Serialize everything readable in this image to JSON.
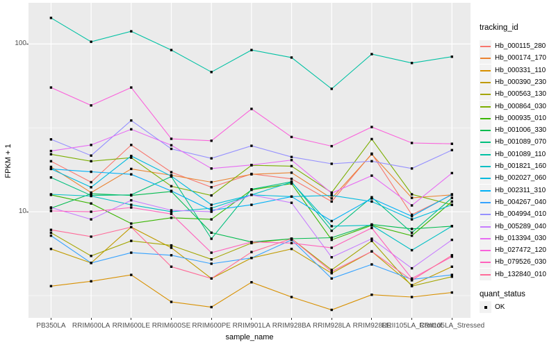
{
  "figure": {
    "y_axis": {
      "title": "FPKM + 1",
      "ticks": [
        {
          "label": "100",
          "value": 100
        },
        {
          "label": "10",
          "value": 10
        }
      ]
    },
    "x_axis": {
      "title": "sample_name"
    },
    "legend": {
      "tracking_title": "tracking_id",
      "quant_title": "quant_status",
      "quant_items": [
        {
          "label": "OK",
          "marker": "filled-square",
          "color": "#000000"
        }
      ]
    },
    "colors": {
      "panel_bg": "#EBEBEB",
      "grid": "#FFFFFF",
      "tick_text": "#4D4D4D",
      "axis_title_text": "#000000",
      "legend_key_bg": "#F2F2F2",
      "marker": "#000000"
    }
  },
  "chart_data": {
    "type": "line",
    "title": "",
    "xlabel": "sample_name",
    "ylabel": "FPKM + 1",
    "y_scale": "log10",
    "ylim": [
      2.33,
      176
    ],
    "y_major_ticks": [
      10,
      100
    ],
    "y_minor_ticks": [
      3.162,
      31.62
    ],
    "grid": "on",
    "legend_position": "right",
    "marker": "filled-black-square",
    "categories": [
      "PB350LA",
      "RRIM600LA",
      "RRIM600LE",
      "RRIM600SE",
      "RRIM600PE",
      "RRIM901LA",
      "RRIM928BA",
      "RRIM928LA",
      "RRIM928LE",
      "RRII105LA_Control",
      "RRII105LA_Stressed"
    ],
    "series": [
      {
        "name": "Hb_000115_280",
        "color": "#F8766D",
        "values": [
          20,
          15,
          25,
          17.2,
          14,
          16.8,
          15.7,
          11.5,
          22.2,
          9.6,
          12.6
        ]
      },
      {
        "name": "Hb_000174_170",
        "color": "#EA8331",
        "values": [
          18.5,
          13,
          18,
          16.5,
          15,
          16.7,
          17.1,
          12.0,
          22.0,
          12.1,
          12.6
        ]
      },
      {
        "name": "Hb_000331_110",
        "color": "#D89000",
        "values": [
          3.6,
          3.85,
          4.2,
          2.9,
          2.7,
          3.8,
          3.1,
          2.6,
          3.2,
          3.1,
          3.3
        ]
      },
      {
        "name": "Hb_000390_230",
        "color": "#C09B00",
        "values": [
          6.0,
          4.95,
          8.1,
          6.1,
          4.0,
          5.3,
          6.0,
          4.3,
          5.8,
          3.65,
          4.7
        ]
      },
      {
        "name": "Hb_000563_130",
        "color": "#A3A500",
        "values": [
          7.5,
          5.45,
          6.7,
          6.3,
          5.2,
          6.5,
          6.9,
          4.5,
          6.7,
          3.6,
          4.1
        ]
      },
      {
        "name": "Hb_000864_030",
        "color": "#7CAE00",
        "values": [
          22,
          20,
          21,
          14.2,
          12.5,
          18.9,
          18.7,
          13,
          27.1,
          12.7,
          11
        ]
      },
      {
        "name": "Hb_000935_010",
        "color": "#39B600",
        "values": [
          12.6,
          11.2,
          8.5,
          9.2,
          9.0,
          13.5,
          14.7,
          6.8,
          8.3,
          7.2,
          11.5
        ]
      },
      {
        "name": "Hb_001006_330",
        "color": "#00BB4E",
        "values": [
          10.5,
          12.8,
          12.5,
          13.2,
          7.5,
          6.6,
          6.9,
          7.0,
          8.4,
          7.9,
          8.2
        ]
      },
      {
        "name": "Hb_001089_070",
        "color": "#00BF7D",
        "values": [
          16,
          12.5,
          12.6,
          16.2,
          6.9,
          13.6,
          15.1,
          7.7,
          12.2,
          7.5,
          12.1
        ]
      },
      {
        "name": "Hb_001089_110",
        "color": "#00C1A3",
        "values": [
          143,
          103,
          119,
          92,
          68,
          92,
          83,
          54,
          87,
          77,
          84
        ]
      },
      {
        "name": "Hb_001821_160",
        "color": "#00BFC4",
        "values": [
          12.7,
          12.4,
          11.0,
          10.0,
          10.5,
          12.6,
          15.0,
          8.2,
          8.3,
          5.9,
          8.2
        ]
      },
      {
        "name": "Hb_002027_060",
        "color": "#00BADE",
        "values": [
          18,
          14,
          21.5,
          16.3,
          11,
          12.6,
          12.3,
          12.5,
          11.5,
          9.0,
          11
        ]
      },
      {
        "name": "Hb_002311_310",
        "color": "#00B0F6",
        "values": [
          18,
          17.3,
          16.7,
          13.3,
          10.2,
          11.0,
          12.3,
          8.8,
          12.0,
          9.4,
          12.7
        ]
      },
      {
        "name": "Hb_004267_040",
        "color": "#35A2FF",
        "values": [
          7.2,
          4.95,
          5.7,
          5.5,
          4.9,
          5.3,
          6.8,
          4.0,
          4.85,
          3.95,
          4.2
        ]
      },
      {
        "name": "Hb_004994_010",
        "color": "#9590FF",
        "values": [
          27,
          21.6,
          35,
          23.7,
          20.8,
          24.7,
          21.2,
          19.3,
          20,
          18.1,
          23.3
        ]
      },
      {
        "name": "Hb_005289_040",
        "color": "#C77CFF",
        "values": [
          10.6,
          9.0,
          11.7,
          10.2,
          10.0,
          12.6,
          11.3,
          5.35,
          6.9,
          4.6,
          6.8
        ]
      },
      {
        "name": "Hb_013394_030",
        "color": "#E76BF3",
        "values": [
          23,
          25,
          31,
          24.9,
          18.1,
          19,
          20.3,
          12.9,
          16.4,
          10.9,
          17
        ]
      },
      {
        "name": "Hb_027472_120",
        "color": "#FA62DB",
        "values": [
          55,
          43,
          55,
          27.2,
          26.5,
          41,
          27.9,
          24.6,
          32,
          25.7,
          25.4
        ]
      },
      {
        "name": "Hb_079526_030",
        "color": "#FF62BC",
        "values": [
          10.1,
          10.0,
          10.6,
          9.7,
          5.7,
          6.6,
          6.5,
          6.1,
          8.0,
          4.0,
          5.4
        ]
      },
      {
        "name": "Hb_132840_010",
        "color": "#FF6A98",
        "values": [
          7.8,
          7.1,
          8.1,
          4.7,
          4.0,
          5.75,
          6.9,
          4.4,
          5.8,
          3.9,
          5.5
        ]
      }
    ],
    "quant_status": {
      "label": "OK",
      "marker": "filled-square",
      "color": "#000000"
    }
  }
}
